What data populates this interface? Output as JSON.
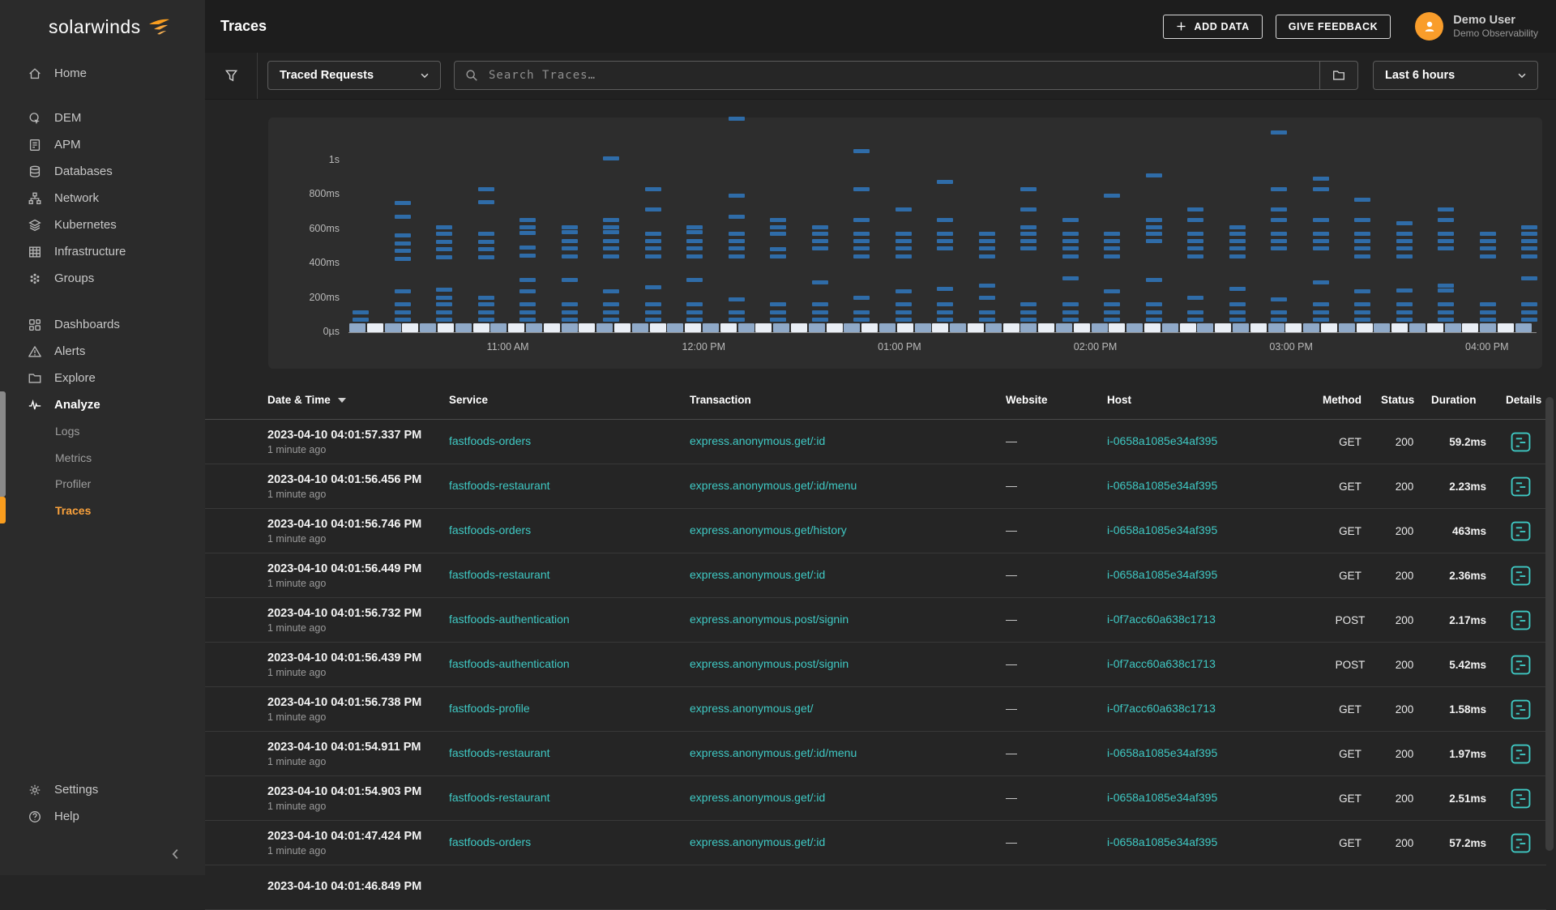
{
  "colors": {
    "accent_orange": "#F99D1E",
    "teal_link": "#3FC9C4",
    "chart_dash_blue": "#2F6CA8",
    "band_light_blue": "#8FA9C8",
    "band_pale": "#E9EEF5",
    "sidebar_bg": "#2b2b2b",
    "topbar_bg": "#1d1d1d"
  },
  "sidebar": {
    "logo_text": "solarwinds",
    "items": [
      {
        "label": "Home",
        "icon": "home",
        "group": 0
      },
      {
        "label": "DEM",
        "icon": "dem",
        "group": 1
      },
      {
        "label": "APM",
        "icon": "apm",
        "group": 1
      },
      {
        "label": "Databases",
        "icon": "databases",
        "group": 1
      },
      {
        "label": "Network",
        "icon": "network",
        "group": 1
      },
      {
        "label": "Kubernetes",
        "icon": "kubernetes",
        "group": 1
      },
      {
        "label": "Infrastructure",
        "icon": "infrastructure",
        "group": 1
      },
      {
        "label": "Groups",
        "icon": "groups",
        "group": 1
      },
      {
        "label": "Dashboards",
        "icon": "dashboards",
        "group": 2
      },
      {
        "label": "Alerts",
        "icon": "alerts",
        "group": 2
      },
      {
        "label": "Explore",
        "icon": "explore",
        "group": 2
      },
      {
        "label": "Analyze",
        "icon": "analyze",
        "group": 2,
        "active": true,
        "children": [
          "Logs",
          "Metrics",
          "Profiler",
          "Traces"
        ],
        "active_child": "Traces"
      }
    ],
    "footer": [
      {
        "label": "Settings",
        "icon": "settings"
      },
      {
        "label": "Help",
        "icon": "help"
      }
    ]
  },
  "header": {
    "title": "Traces",
    "add_data_label": "ADD DATA",
    "give_feedback_label": "GIVE FEEDBACK",
    "user": {
      "name": "Demo User",
      "org": "Demo Observability"
    }
  },
  "filter_bar": {
    "view_selector": "Traced Requests",
    "search_placeholder": "Search Traces…",
    "time_range": "Last 6 hours"
  },
  "chart_data": {
    "type": "scatter",
    "xlabel": "time",
    "ylabel": "trace duration",
    "grid": false,
    "legend": false,
    "y_ticks": [
      {
        "label": "0µs",
        "ms": 0
      },
      {
        "label": "200ms",
        "ms": 200
      },
      {
        "label": "400ms",
        "ms": 400
      },
      {
        "label": "600ms",
        "ms": 600
      },
      {
        "label": "800ms",
        "ms": 800
      },
      {
        "label": "1s",
        "ms": 1000
      }
    ],
    "y_range_ms": [
      0,
      1200
    ],
    "x_tick_labels": [
      "11:00 AM",
      "12:00 PM",
      "01:00 PM",
      "02:00 PM",
      "03:00 PM",
      "04:00 PM"
    ],
    "dash_color": "#2F6CA8",
    "density_band": {
      "note": "high-density band of fast traces near 0µs",
      "segment_count": 67,
      "colors": [
        "#8FA9C8",
        "#E9EEF5"
      ]
    },
    "columns_durations_ms": [
      [
        105,
        60
      ],
      [
        740,
        660,
        550,
        505,
        460,
        415,
        225,
        150,
        105,
        60
      ],
      [
        600,
        560,
        515,
        470,
        425,
        235,
        190,
        150,
        105,
        60
      ],
      [
        820,
        745,
        560,
        515,
        470,
        425,
        190,
        150,
        105,
        60
      ],
      [
        640,
        600,
        565,
        480,
        435,
        290,
        225,
        150,
        105,
        60
      ],
      [
        600,
        570,
        520,
        475,
        430,
        290,
        150,
        105,
        60
      ],
      [
        1000,
        640,
        600,
        570,
        520,
        475,
        430,
        225,
        150,
        105,
        60
      ],
      [
        820,
        700,
        560,
        520,
        475,
        430,
        250,
        150,
        105,
        60
      ],
      [
        600,
        570,
        520,
        475,
        430,
        290,
        150,
        105,
        60
      ],
      [
        1230,
        780,
        660,
        560,
        520,
        475,
        430,
        180,
        105,
        60
      ],
      [
        640,
        600,
        560,
        470,
        430,
        150,
        105,
        60
      ],
      [
        600,
        560,
        520,
        475,
        280,
        150,
        105,
        60
      ],
      [
        1040,
        820,
        640,
        560,
        520,
        475,
        430,
        190,
        105,
        60
      ],
      [
        700,
        560,
        520,
        475,
        430,
        225,
        150,
        105,
        60
      ],
      [
        860,
        640,
        560,
        520,
        475,
        240,
        150,
        105,
        60
      ],
      [
        560,
        520,
        475,
        430,
        260,
        190,
        105,
        60
      ],
      [
        820,
        700,
        600,
        560,
        520,
        475,
        150,
        105,
        60
      ],
      [
        640,
        560,
        520,
        475,
        430,
        300,
        150,
        105,
        60
      ],
      [
        780,
        560,
        520,
        475,
        430,
        225,
        150,
        105,
        60
      ],
      [
        900,
        640,
        600,
        560,
        520,
        290,
        150,
        105,
        60
      ],
      [
        700,
        640,
        560,
        520,
        475,
        430,
        190,
        105,
        60
      ],
      [
        600,
        560,
        520,
        475,
        430,
        240,
        150,
        105,
        60
      ],
      [
        1150,
        820,
        700,
        640,
        560,
        520,
        475,
        180,
        105,
        60
      ],
      [
        880,
        820,
        640,
        560,
        520,
        475,
        280,
        150,
        105,
        60
      ],
      [
        760,
        640,
        560,
        520,
        475,
        430,
        225,
        150,
        105,
        60
      ],
      [
        620,
        560,
        520,
        475,
        430,
        230,
        150,
        105,
        60
      ],
      [
        700,
        640,
        560,
        520,
        475,
        260,
        230,
        150,
        105,
        60
      ],
      [
        560,
        520,
        475,
        430,
        150,
        105,
        60
      ],
      [
        600,
        560,
        520,
        475,
        430,
        300,
        150,
        105,
        60
      ]
    ]
  },
  "table": {
    "columns": [
      "Date & Time",
      "Service",
      "Transaction",
      "Website",
      "Host",
      "Method",
      "Status",
      "Duration",
      "Details"
    ],
    "rows": [
      {
        "datetime": "2023-04-10 04:01:57.337 PM",
        "ago": "1 minute ago",
        "service": "fastfoods-orders",
        "transaction": "express.anonymous.get/:id",
        "website": "—",
        "host": "i-0658a1085e34af395",
        "method": "GET",
        "status": "200",
        "duration": "59.2ms"
      },
      {
        "datetime": "2023-04-10 04:01:56.456 PM",
        "ago": "1 minute ago",
        "service": "fastfoods-restaurant",
        "transaction": "express.anonymous.get/:id/menu",
        "website": "—",
        "host": "i-0658a1085e34af395",
        "method": "GET",
        "status": "200",
        "duration": "2.23ms"
      },
      {
        "datetime": "2023-04-10 04:01:56.746 PM",
        "ago": "1 minute ago",
        "service": "fastfoods-orders",
        "transaction": "express.anonymous.get/history",
        "website": "—",
        "host": "i-0658a1085e34af395",
        "method": "GET",
        "status": "200",
        "duration": "463ms"
      },
      {
        "datetime": "2023-04-10 04:01:56.449 PM",
        "ago": "1 minute ago",
        "service": "fastfoods-restaurant",
        "transaction": "express.anonymous.get/:id",
        "website": "—",
        "host": "i-0658a1085e34af395",
        "method": "GET",
        "status": "200",
        "duration": "2.36ms"
      },
      {
        "datetime": "2023-04-10 04:01:56.732 PM",
        "ago": "1 minute ago",
        "service": "fastfoods-authentication",
        "transaction": "express.anonymous.post/signin",
        "website": "—",
        "host": "i-0f7acc60a638c1713",
        "method": "POST",
        "status": "200",
        "duration": "2.17ms"
      },
      {
        "datetime": "2023-04-10 04:01:56.439 PM",
        "ago": "1 minute ago",
        "service": "fastfoods-authentication",
        "transaction": "express.anonymous.post/signin",
        "website": "—",
        "host": "i-0f7acc60a638c1713",
        "method": "POST",
        "status": "200",
        "duration": "5.42ms"
      },
      {
        "datetime": "2023-04-10 04:01:56.738 PM",
        "ago": "1 minute ago",
        "service": "fastfoods-profile",
        "transaction": "express.anonymous.get/",
        "website": "—",
        "host": "i-0f7acc60a638c1713",
        "method": "GET",
        "status": "200",
        "duration": "1.58ms"
      },
      {
        "datetime": "2023-04-10 04:01:54.911 PM",
        "ago": "1 minute ago",
        "service": "fastfoods-restaurant",
        "transaction": "express.anonymous.get/:id/menu",
        "website": "—",
        "host": "i-0658a1085e34af395",
        "method": "GET",
        "status": "200",
        "duration": "1.97ms"
      },
      {
        "datetime": "2023-04-10 04:01:54.903 PM",
        "ago": "1 minute ago",
        "service": "fastfoods-restaurant",
        "transaction": "express.anonymous.get/:id",
        "website": "—",
        "host": "i-0658a1085e34af395",
        "method": "GET",
        "status": "200",
        "duration": "2.51ms"
      },
      {
        "datetime": "2023-04-10 04:01:47.424 PM",
        "ago": "1 minute ago",
        "service": "fastfoods-orders",
        "transaction": "express.anonymous.get/:id",
        "website": "—",
        "host": "i-0658a1085e34af395",
        "method": "GET",
        "status": "200",
        "duration": "57.2ms"
      },
      {
        "datetime": "2023-04-10 04:01:46.849 PM",
        "ago": "",
        "service": "",
        "transaction": "",
        "website": "",
        "host": "",
        "method": "",
        "status": "",
        "duration": "",
        "partial": true
      }
    ]
  }
}
